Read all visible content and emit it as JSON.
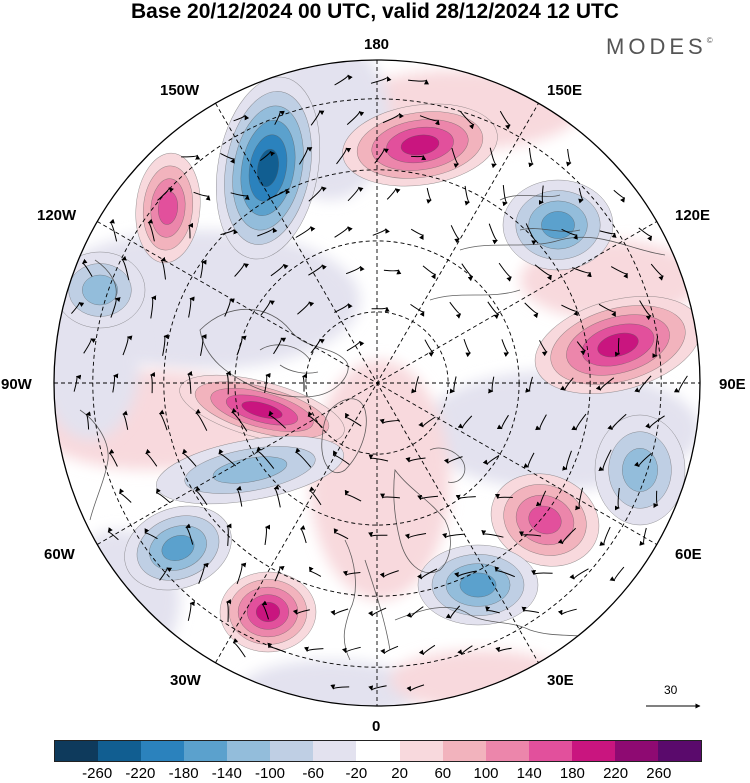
{
  "title": "Base 20/12/2024 00 UTC, valid 28/12/2024 12 UTC",
  "brand": {
    "name": "MODES",
    "mark": "©"
  },
  "longitude_labels": {
    "top": "180",
    "top_right": "150E",
    "upper_right": "120E",
    "right": "90E",
    "lower_right": "60E",
    "bottom_right": "30E",
    "bottom": "0",
    "bottom_left": "30W",
    "lower_left": "60W",
    "left": "90W",
    "upper_left": "120W",
    "top_left": "150W"
  },
  "reference_vector": {
    "value": "30"
  },
  "colorbar": {
    "colors": [
      "#0e3a5c",
      "#115e91",
      "#2b82bd",
      "#5ba1cd",
      "#93bddb",
      "#bfcfe4",
      "#e3e2ef",
      "#ffffff",
      "#f8d9dd",
      "#f2b3bd",
      "#ec86ab",
      "#e2509c",
      "#c9157f",
      "#8e0a72",
      "#5a0a6c"
    ],
    "ticks": [
      "-260",
      "-220",
      "-180",
      "-140",
      "-100",
      "-60",
      "-20",
      "20",
      "60",
      "100",
      "140",
      "180",
      "220",
      "260"
    ]
  },
  "anomaly_centers": [
    {
      "sign": "positive",
      "level": 180,
      "location": "north of 180 near 160E"
    },
    {
      "sign": "negative",
      "level": -220,
      "location": "near 160W"
    },
    {
      "sign": "positive",
      "level": 140,
      "location": "near 135W"
    },
    {
      "sign": "negative",
      "level": -140,
      "location": "near 125E"
    },
    {
      "sign": "negative",
      "level": -100,
      "location": "near 110W"
    },
    {
      "sign": "positive",
      "level": 180,
      "location": "near 95E"
    },
    {
      "sign": "positive",
      "level": 180,
      "location": "near 80W"
    },
    {
      "sign": "negative",
      "level": -100,
      "location": "near 65W"
    },
    {
      "sign": "negative",
      "level": -140,
      "location": "near 55W"
    },
    {
      "sign": "positive",
      "level": 180,
      "location": "near 35W"
    },
    {
      "sign": "negative",
      "level": -100,
      "location": "near 75E"
    },
    {
      "sign": "positive",
      "level": 140,
      "location": "near 55E"
    },
    {
      "sign": "negative",
      "level": -140,
      "location": "near 30E"
    }
  ]
}
